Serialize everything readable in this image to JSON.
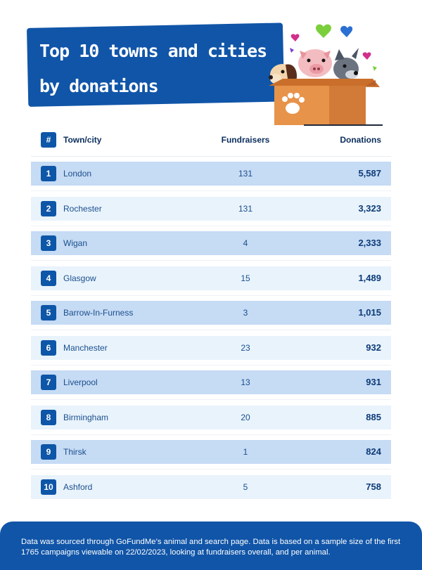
{
  "title": {
    "line1": "Top 10 towns and cities",
    "line2": "by donations"
  },
  "illustration": {
    "icon": "animals-in-box-illustration"
  },
  "colors": {
    "accent": "#1055a8",
    "row_dark": "#c6dbf4",
    "row_light": "#e9f3fc",
    "box": "#e8934a"
  },
  "table": {
    "headers": {
      "rank": "#",
      "town": "Town/city",
      "fundraisers": "Fundraisers",
      "donations": "Donations"
    },
    "rows": [
      {
        "rank": "1",
        "town": "London",
        "fundraisers": "131",
        "donations": "5,587"
      },
      {
        "rank": "2",
        "town": "Rochester",
        "fundraisers": "131",
        "donations": "3,323"
      },
      {
        "rank": "3",
        "town": "Wigan",
        "fundraisers": "4",
        "donations": "2,333"
      },
      {
        "rank": "4",
        "town": "Glasgow",
        "fundraisers": "15",
        "donations": "1,489"
      },
      {
        "rank": "5",
        "town": "Barrow-In-Furness",
        "fundraisers": "3",
        "donations": "1,015"
      },
      {
        "rank": "6",
        "town": "Manchester",
        "fundraisers": "23",
        "donations": "932"
      },
      {
        "rank": "7",
        "town": "Liverpool",
        "fundraisers": "13",
        "donations": "931"
      },
      {
        "rank": "8",
        "town": "Birmingham",
        "fundraisers": "20",
        "donations": "885"
      },
      {
        "rank": "9",
        "town": "Thirsk",
        "fundraisers": "1",
        "donations": "824"
      },
      {
        "rank": "10",
        "town": "Ashford",
        "fundraisers": "5",
        "donations": "758"
      }
    ]
  },
  "chart_data": {
    "type": "table",
    "title": "Top 10 towns and cities by donations",
    "columns": [
      "#",
      "Town/city",
      "Fundraisers",
      "Donations"
    ],
    "rows": [
      [
        1,
        "London",
        131,
        5587
      ],
      [
        2,
        "Rochester",
        131,
        3323
      ],
      [
        3,
        "Wigan",
        4,
        2333
      ],
      [
        4,
        "Glasgow",
        15,
        1489
      ],
      [
        5,
        "Barrow-In-Furness",
        3,
        1015
      ],
      [
        6,
        "Manchester",
        23,
        932
      ],
      [
        7,
        "Liverpool",
        13,
        931
      ],
      [
        8,
        "Birmingham",
        20,
        885
      ],
      [
        9,
        "Thirsk",
        1,
        824
      ],
      [
        10,
        "Ashford",
        5,
        758
      ]
    ]
  },
  "footer": {
    "text": "Data was sourced through GoFundMe’s animal and search page. Data is based on a sample size of the first 1765 campaigns viewable on 22/02/2023, looking at fundraisers overall, and per animal."
  }
}
